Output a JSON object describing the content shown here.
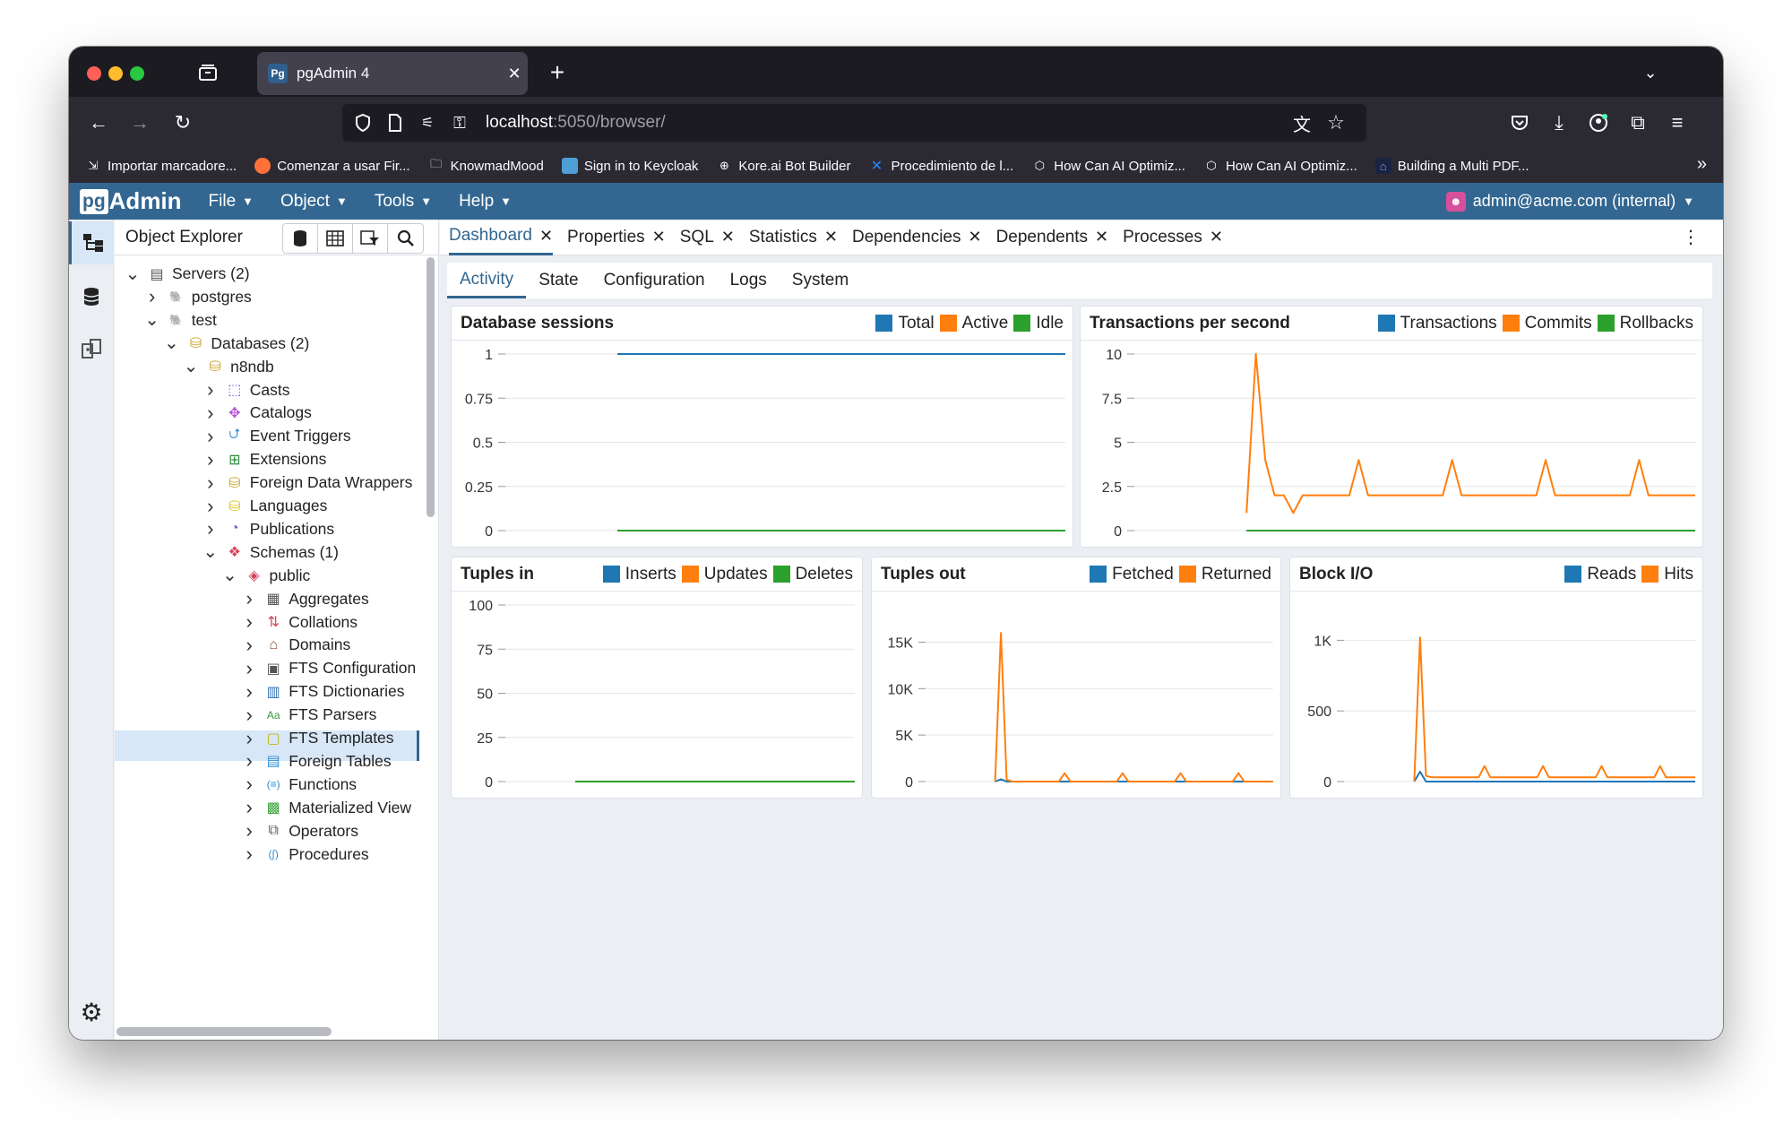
{
  "browser": {
    "tab_title": "pgAdmin 4",
    "tab_favicon": "Pg",
    "url_host": "localhost",
    "url_rest": ":5050/browser/",
    "bookmarks": [
      {
        "label": "Importar marcadore...",
        "icon": "import-icon"
      },
      {
        "label": "Comenzar a usar Fir...",
        "icon": "firefox-icon"
      },
      {
        "label": "KnowmadMood",
        "icon": "folder-icon"
      },
      {
        "label": "Sign in to Keycloak",
        "icon": "keycloak-icon"
      },
      {
        "label": "Kore.ai Bot Builder",
        "icon": "globe-icon"
      },
      {
        "label": "Procedimiento de l...",
        "icon": "confluence-icon"
      },
      {
        "label": "How Can AI Optimiz...",
        "icon": "hexagon-icon"
      },
      {
        "label": "How Can AI Optimiz...",
        "icon": "hexagon-icon"
      },
      {
        "label": "Building a Multi PDF...",
        "icon": "app-icon"
      }
    ]
  },
  "app": {
    "logo_pg": "pg",
    "logo_admin": "Admin",
    "menus": [
      "File",
      "Object",
      "Tools",
      "Help"
    ],
    "user": "admin@acme.com (internal)"
  },
  "explorer": {
    "title": "Object Explorer",
    "tree": [
      {
        "label": "Servers (2)",
        "depth": 0,
        "expanded": true,
        "icon": "servers-icon"
      },
      {
        "label": "postgres",
        "depth": 1,
        "expanded": false,
        "icon": "elephant-icon"
      },
      {
        "label": "test",
        "depth": 1,
        "expanded": true,
        "icon": "elephant-icon"
      },
      {
        "label": "Databases (2)",
        "depth": 2,
        "expanded": true,
        "icon": "databases-icon"
      },
      {
        "label": "n8ndb",
        "depth": 3,
        "expanded": true,
        "icon": "database-icon"
      },
      {
        "label": "Casts",
        "depth": 4,
        "expanded": false,
        "icon": "casts-icon"
      },
      {
        "label": "Catalogs",
        "depth": 4,
        "expanded": false,
        "icon": "catalogs-icon"
      },
      {
        "label": "Event Triggers",
        "depth": 4,
        "expanded": false,
        "icon": "event-triggers-icon"
      },
      {
        "label": "Extensions",
        "depth": 4,
        "expanded": false,
        "icon": "extensions-icon"
      },
      {
        "label": "Foreign Data Wrappers",
        "depth": 4,
        "expanded": false,
        "icon": "fdw-icon"
      },
      {
        "label": "Languages",
        "depth": 4,
        "expanded": false,
        "icon": "languages-icon"
      },
      {
        "label": "Publications",
        "depth": 4,
        "expanded": false,
        "icon": "publications-icon"
      },
      {
        "label": "Schemas (1)",
        "depth": 4,
        "expanded": true,
        "icon": "schemas-icon"
      },
      {
        "label": "public",
        "depth": 5,
        "expanded": true,
        "icon": "schema-icon",
        "selected": true
      },
      {
        "label": "Aggregates",
        "depth": 6,
        "expanded": false,
        "icon": "aggregates-icon"
      },
      {
        "label": "Collations",
        "depth": 6,
        "expanded": false,
        "icon": "collations-icon"
      },
      {
        "label": "Domains",
        "depth": 6,
        "expanded": false,
        "icon": "domains-icon"
      },
      {
        "label": "FTS Configuration",
        "depth": 6,
        "expanded": false,
        "icon": "fts-config-icon"
      },
      {
        "label": "FTS Dictionaries",
        "depth": 6,
        "expanded": false,
        "icon": "fts-dict-icon"
      },
      {
        "label": "FTS Parsers",
        "depth": 6,
        "expanded": false,
        "icon": "fts-parsers-icon"
      },
      {
        "label": "FTS Templates",
        "depth": 6,
        "expanded": false,
        "icon": "fts-templates-icon"
      },
      {
        "label": "Foreign Tables",
        "depth": 6,
        "expanded": false,
        "icon": "foreign-tables-icon"
      },
      {
        "label": "Functions",
        "depth": 6,
        "expanded": false,
        "icon": "functions-icon"
      },
      {
        "label": "Materialized View",
        "depth": 6,
        "expanded": false,
        "icon": "mat-views-icon"
      },
      {
        "label": "Operators",
        "depth": 6,
        "expanded": false,
        "icon": "operators-icon"
      },
      {
        "label": "Procedures",
        "depth": 6,
        "expanded": false,
        "icon": "procedures-icon"
      }
    ]
  },
  "main": {
    "tabs": [
      "Dashboard",
      "Properties",
      "SQL",
      "Statistics",
      "Dependencies",
      "Dependents",
      "Processes"
    ],
    "subtabs": [
      "Activity",
      "State",
      "Configuration",
      "Logs",
      "System"
    ]
  },
  "colors": {
    "blue": "#1f77b4",
    "orange": "#ff7f0e",
    "green": "#2ca02c",
    "accent": "#326690",
    "header": "#336791"
  },
  "chart_data": [
    {
      "type": "line",
      "title": "Database sessions",
      "yticks": [
        "1",
        "0.75",
        "0.5",
        "0.25",
        "0"
      ],
      "ylim": [
        0,
        1
      ],
      "series": [
        {
          "name": "Total",
          "values": [
            null,
            null,
            null,
            null,
            null,
            null,
            null,
            null,
            null,
            null,
            null,
            null,
            1,
            1,
            1,
            1,
            1,
            1,
            1,
            1,
            1,
            1,
            1,
            1,
            1,
            1,
            1,
            1,
            1,
            1,
            1,
            1,
            1,
            1,
            1,
            1,
            1,
            1,
            1,
            1,
            1,
            1,
            1,
            1,
            1,
            1,
            1,
            1,
            1,
            1,
            1,
            1,
            1,
            1,
            1,
            1,
            1,
            1,
            1,
            1,
            1
          ]
        },
        {
          "name": "Active",
          "values": [
            null,
            null,
            null,
            null,
            null,
            null,
            null,
            null,
            null,
            null,
            null,
            null,
            1,
            1,
            1,
            1,
            1,
            1,
            1,
            1,
            1,
            1,
            1,
            1,
            1,
            1,
            1,
            1,
            1,
            1,
            1,
            1,
            1,
            1,
            1,
            1,
            1,
            1,
            1,
            1,
            1,
            1,
            1,
            1,
            1,
            1,
            1,
            1,
            1,
            1,
            1,
            1,
            1,
            1,
            1,
            1,
            1,
            1,
            1,
            1,
            1
          ]
        },
        {
          "name": "Idle",
          "values": [
            null,
            null,
            null,
            null,
            null,
            null,
            null,
            null,
            null,
            null,
            null,
            null,
            0,
            0,
            0,
            0,
            0,
            0,
            0,
            0,
            0,
            0,
            0,
            0,
            0,
            0,
            0,
            0,
            0,
            0,
            0,
            0,
            0,
            0,
            0,
            0,
            0,
            0,
            0,
            0,
            0,
            0,
            0,
            0,
            0,
            0,
            0,
            0,
            0,
            0,
            0,
            0,
            0,
            0,
            0,
            0,
            0,
            0,
            0,
            0,
            0
          ]
        }
      ]
    },
    {
      "type": "line",
      "title": "Transactions per second",
      "yticks": [
        "10",
        "7.5",
        "5",
        "2.5",
        "0"
      ],
      "ylim": [
        0,
        10
      ],
      "series": [
        {
          "name": "Transactions",
          "values": [
            null,
            null,
            null,
            null,
            null,
            null,
            null,
            null,
            null,
            null,
            null,
            null,
            0,
            0,
            0,
            0,
            0,
            0,
            0,
            0,
            0,
            0,
            0,
            0,
            0,
            0,
            0,
            0,
            0,
            0,
            0,
            0,
            0,
            0,
            0,
            0,
            0,
            0,
            0,
            0,
            0,
            0,
            0,
            0,
            0,
            0,
            0,
            0,
            0,
            0,
            0,
            0,
            0,
            0,
            0,
            0,
            0,
            0,
            0,
            0,
            0
          ]
        },
        {
          "name": "Commits",
          "values": [
            null,
            null,
            null,
            null,
            null,
            null,
            null,
            null,
            null,
            null,
            null,
            null,
            1,
            10,
            4,
            2,
            2,
            1,
            2,
            2,
            2,
            2,
            2,
            2,
            4,
            2,
            2,
            2,
            2,
            2,
            2,
            2,
            2,
            2,
            4,
            2,
            2,
            2,
            2,
            2,
            2,
            2,
            2,
            2,
            4,
            2,
            2,
            2,
            2,
            2,
            2,
            2,
            2,
            2,
            4,
            2,
            2,
            2,
            2,
            2,
            2
          ]
        },
        {
          "name": "Rollbacks",
          "values": [
            null,
            null,
            null,
            null,
            null,
            null,
            null,
            null,
            null,
            null,
            null,
            null,
            0,
            0,
            0,
            0,
            0,
            0,
            0,
            0,
            0,
            0,
            0,
            0,
            0,
            0,
            0,
            0,
            0,
            0,
            0,
            0,
            0,
            0,
            0,
            0,
            0,
            0,
            0,
            0,
            0,
            0,
            0,
            0,
            0,
            0,
            0,
            0,
            0,
            0,
            0,
            0,
            0,
            0,
            0,
            0,
            0,
            0,
            0,
            0,
            0
          ]
        }
      ]
    },
    {
      "type": "line",
      "title": "Tuples in",
      "yticks": [
        "100",
        "75",
        "50",
        "25",
        "0"
      ],
      "ylim": [
        0,
        100
      ],
      "series": [
        {
          "name": "Inserts",
          "values": [
            null,
            null,
            null,
            null,
            null,
            null,
            null,
            null,
            null,
            null,
            null,
            null,
            0,
            0,
            0,
            0,
            0,
            0,
            0,
            0,
            0,
            0,
            0,
            0,
            0,
            0,
            0,
            0,
            0,
            0,
            0,
            0,
            0,
            0,
            0,
            0,
            0,
            0,
            0,
            0,
            0,
            0,
            0,
            0,
            0,
            0,
            0,
            0,
            0,
            0,
            0,
            0,
            0,
            0,
            0,
            0,
            0,
            0,
            0,
            0,
            0
          ]
        },
        {
          "name": "Updates",
          "values": [
            null,
            null,
            null,
            null,
            null,
            null,
            null,
            null,
            null,
            null,
            null,
            null,
            0,
            0,
            0,
            0,
            0,
            0,
            0,
            0,
            0,
            0,
            0,
            0,
            0,
            0,
            0,
            0,
            0,
            0,
            0,
            0,
            0,
            0,
            0,
            0,
            0,
            0,
            0,
            0,
            0,
            0,
            0,
            0,
            0,
            0,
            0,
            0,
            0,
            0,
            0,
            0,
            0,
            0,
            0,
            0,
            0,
            0,
            0,
            0,
            0
          ]
        },
        {
          "name": "Deletes",
          "values": [
            null,
            null,
            null,
            null,
            null,
            null,
            null,
            null,
            null,
            null,
            null,
            null,
            0,
            0,
            0,
            0,
            0,
            0,
            0,
            0,
            0,
            0,
            0,
            0,
            0,
            0,
            0,
            0,
            0,
            0,
            0,
            0,
            0,
            0,
            0,
            0,
            0,
            0,
            0,
            0,
            0,
            0,
            0,
            0,
            0,
            0,
            0,
            0,
            0,
            0,
            0,
            0,
            0,
            0,
            0,
            0,
            0,
            0,
            0,
            0,
            0
          ]
        }
      ]
    },
    {
      "type": "line",
      "title": "Tuples out",
      "yticks": [
        "15K",
        "10K",
        "5K",
        "0"
      ],
      "ylim": [
        0,
        19000
      ],
      "series": [
        {
          "name": "Fetched",
          "values": [
            null,
            null,
            null,
            null,
            null,
            null,
            null,
            null,
            null,
            null,
            null,
            null,
            0,
            250,
            0,
            0,
            0,
            0,
            0,
            0,
            0,
            0,
            0,
            0,
            0,
            0,
            0,
            0,
            0,
            0,
            0,
            0,
            0,
            0,
            0,
            0,
            0,
            0,
            0,
            0,
            0,
            0,
            0,
            0,
            0,
            0,
            0,
            0,
            0,
            0,
            0,
            0,
            0,
            0,
            0,
            0,
            0,
            0,
            0,
            0,
            0
          ]
        },
        {
          "name": "Returned",
          "values": [
            null,
            null,
            null,
            null,
            null,
            null,
            null,
            null,
            null,
            null,
            null,
            null,
            0,
            16000,
            200,
            0,
            0,
            0,
            0,
            0,
            0,
            0,
            0,
            0,
            900,
            0,
            0,
            0,
            0,
            0,
            0,
            0,
            0,
            0,
            900,
            0,
            0,
            0,
            0,
            0,
            0,
            0,
            0,
            0,
            900,
            0,
            0,
            0,
            0,
            0,
            0,
            0,
            0,
            0,
            900,
            0,
            0,
            0,
            0,
            0,
            0
          ]
        }
      ]
    },
    {
      "type": "line",
      "title": "Block I/O",
      "yticks": [
        "1K",
        "500",
        "0"
      ],
      "ylim": [
        0,
        1250
      ],
      "series": [
        {
          "name": "Reads",
          "values": [
            null,
            null,
            null,
            null,
            null,
            null,
            null,
            null,
            null,
            null,
            null,
            null,
            0,
            70,
            0,
            0,
            0,
            0,
            0,
            0,
            0,
            0,
            0,
            0,
            0,
            0,
            0,
            0,
            0,
            0,
            0,
            0,
            0,
            0,
            0,
            0,
            0,
            0,
            0,
            0,
            0,
            0,
            0,
            0,
            0,
            0,
            0,
            0,
            0,
            0,
            0,
            0,
            0,
            0,
            0,
            0,
            0,
            0,
            0,
            0,
            0
          ]
        },
        {
          "name": "Hits",
          "values": [
            null,
            null,
            null,
            null,
            null,
            null,
            null,
            null,
            null,
            null,
            null,
            null,
            0,
            1020,
            40,
            30,
            30,
            30,
            30,
            30,
            30,
            30,
            30,
            30,
            110,
            30,
            30,
            30,
            30,
            30,
            30,
            30,
            30,
            30,
            110,
            30,
            30,
            30,
            30,
            30,
            30,
            30,
            30,
            30,
            110,
            30,
            30,
            30,
            30,
            30,
            30,
            30,
            30,
            30,
            110,
            30,
            30,
            30,
            30,
            30,
            30
          ]
        }
      ]
    }
  ]
}
